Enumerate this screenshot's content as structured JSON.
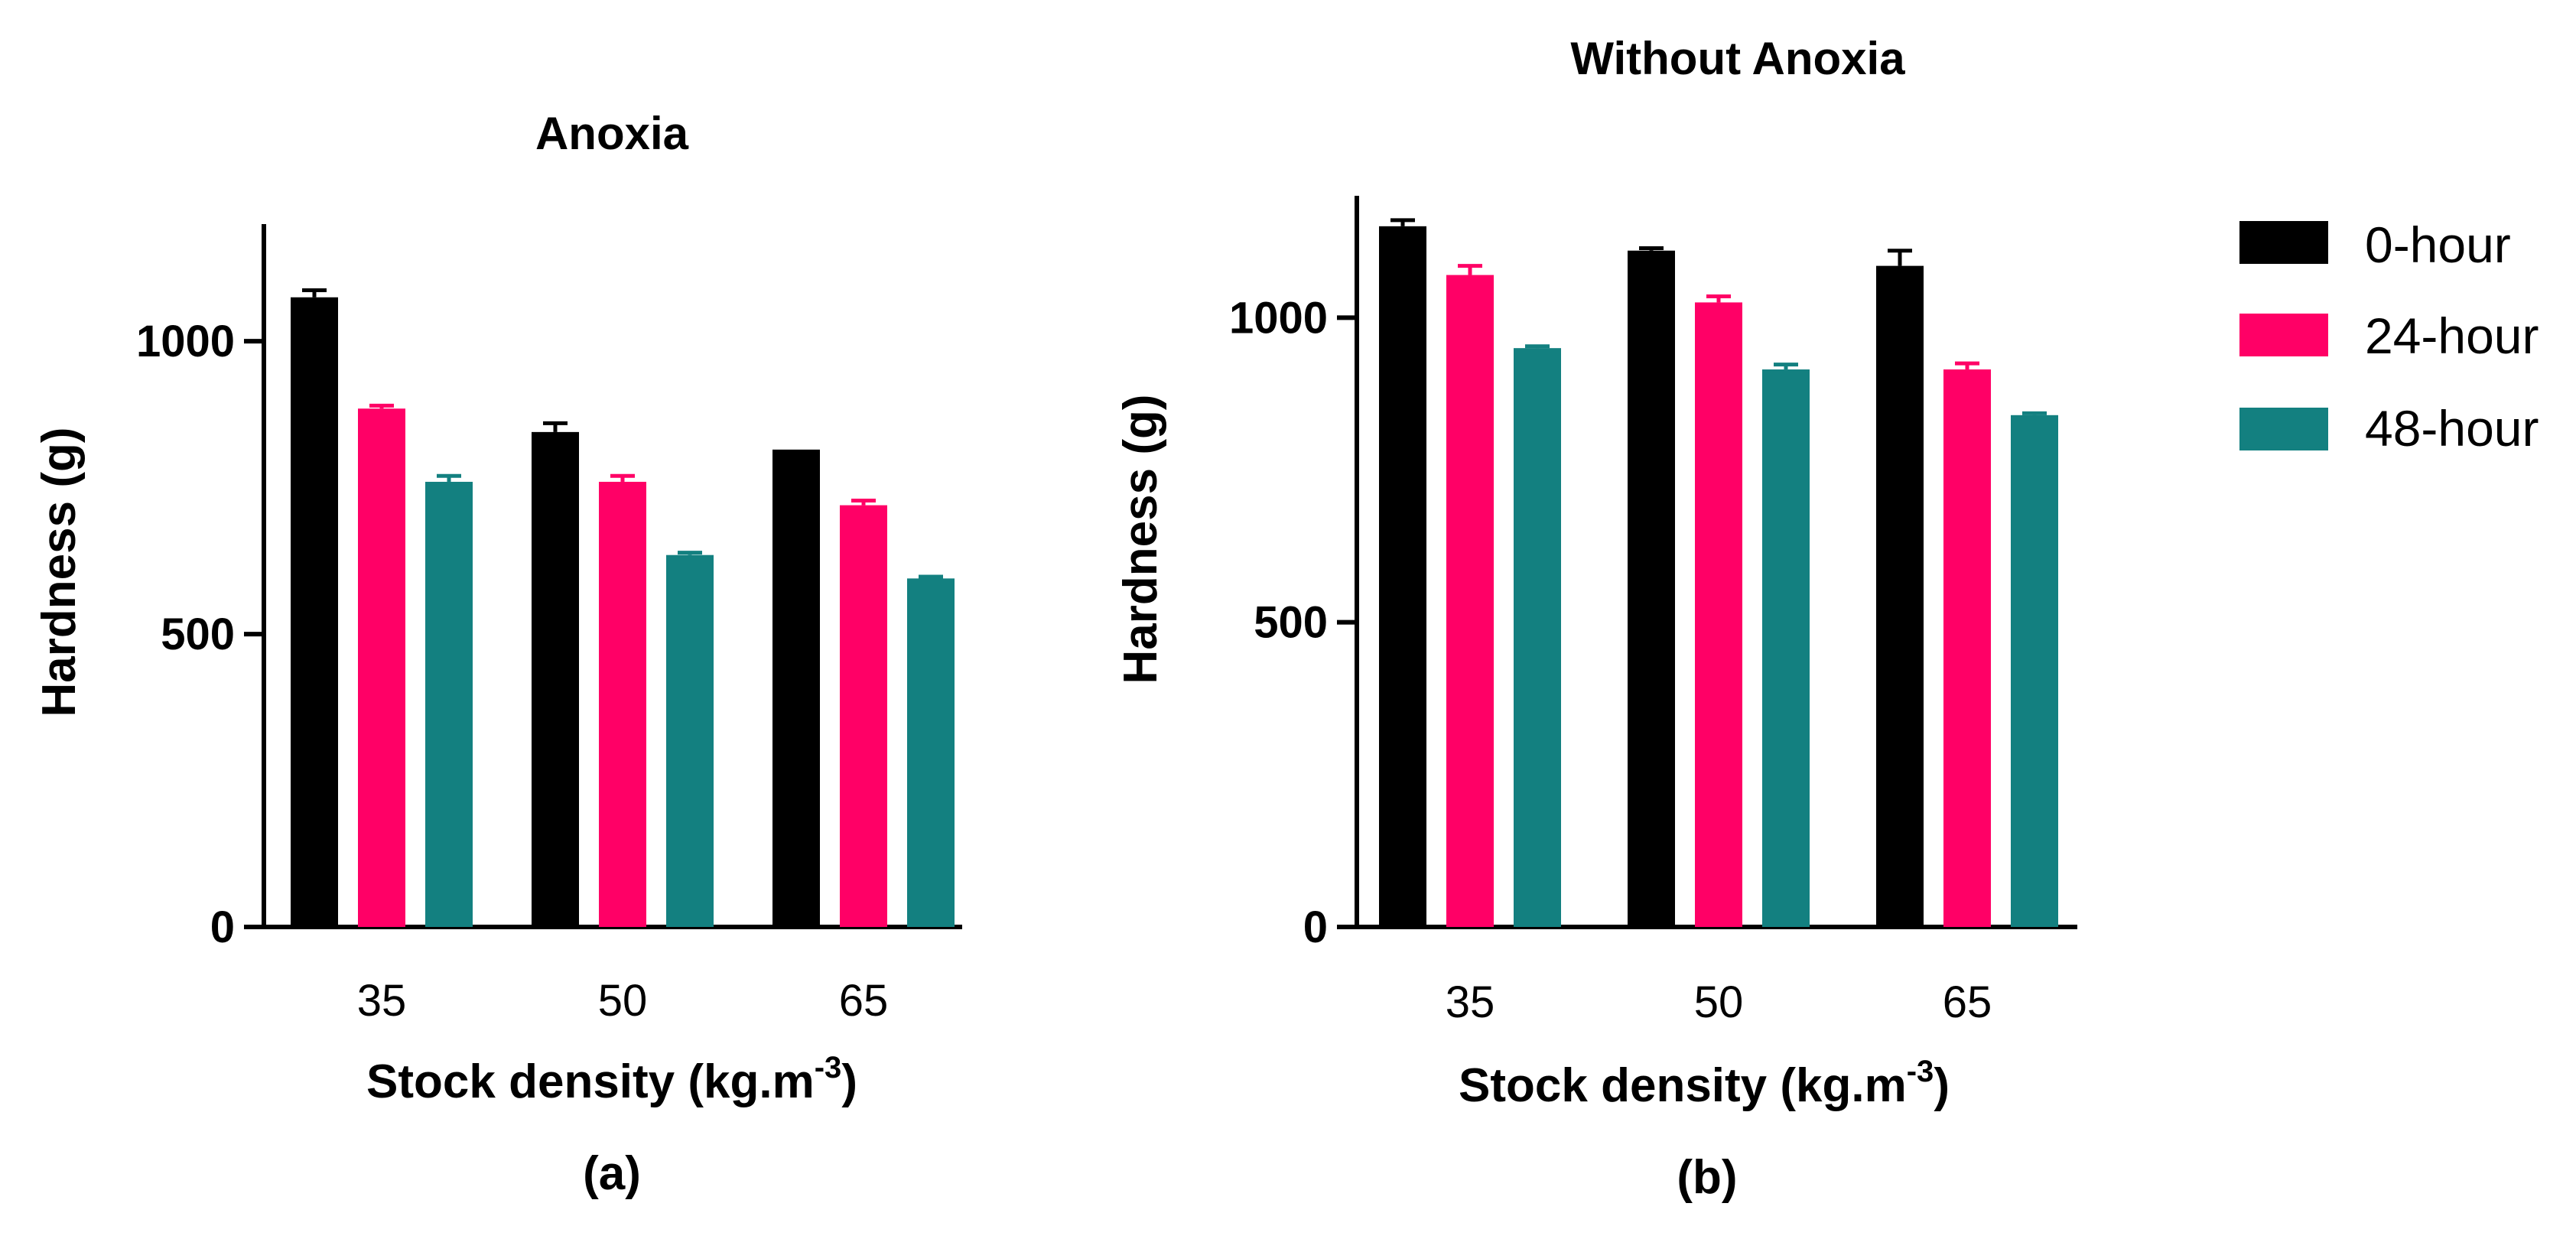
{
  "colors": {
    "hour0": "#000000",
    "hour24": "#ff0066",
    "hour48": "#138080",
    "axis": "#000000"
  },
  "legend": {
    "items": [
      {
        "label": "0-hour",
        "color": "#000000"
      },
      {
        "label": "24-hour",
        "color": "#ff0066"
      },
      {
        "label": "48-hour",
        "color": "#138080"
      }
    ]
  },
  "chart_data": [
    {
      "type": "bar",
      "title": "Anoxia",
      "panel_label": "(a)",
      "xlabel_main": "Stock density (kg.m",
      "xlabel_sup": "-3",
      "xlabel_end": ")",
      "ylabel": "Hardness (g)",
      "categories": [
        "35",
        "50",
        "65"
      ],
      "ylim": [
        0,
        1200
      ],
      "yticks": [
        0,
        500,
        1000
      ],
      "ytick_labels": [
        "0",
        "500",
        "1000"
      ],
      "series": [
        {
          "name": "0-hour",
          "values": [
            1075,
            845,
            815
          ],
          "errors": [
            12,
            15,
            0
          ]
        },
        {
          "name": "24-hour",
          "values": [
            885,
            760,
            720
          ],
          "errors": [
            5,
            10,
            8
          ]
        },
        {
          "name": "48-hour",
          "values": [
            760,
            635,
            595
          ],
          "errors": [
            10,
            4,
            3
          ]
        }
      ]
    },
    {
      "type": "bar",
      "title": "Without Anoxia",
      "panel_label": "(b)",
      "xlabel_main": "Stock density (kg.m",
      "xlabel_sup": "-3",
      "xlabel_end": ")",
      "ylabel": "Hardness (g)",
      "categories": [
        "35",
        "50",
        "65"
      ],
      "ylim": [
        0,
        1200
      ],
      "yticks": [
        0,
        500,
        1000
      ],
      "ytick_labels": [
        "0",
        "500",
        "1000"
      ],
      "series": [
        {
          "name": "0-hour",
          "values": [
            1150,
            1110,
            1085
          ],
          "errors": [
            10,
            4,
            25
          ]
        },
        {
          "name": "24-hour",
          "values": [
            1070,
            1025,
            915
          ],
          "errors": [
            15,
            10,
            10
          ]
        },
        {
          "name": "48-hour",
          "values": [
            950,
            915,
            840
          ],
          "errors": [
            3,
            8,
            3
          ]
        }
      ]
    }
  ]
}
